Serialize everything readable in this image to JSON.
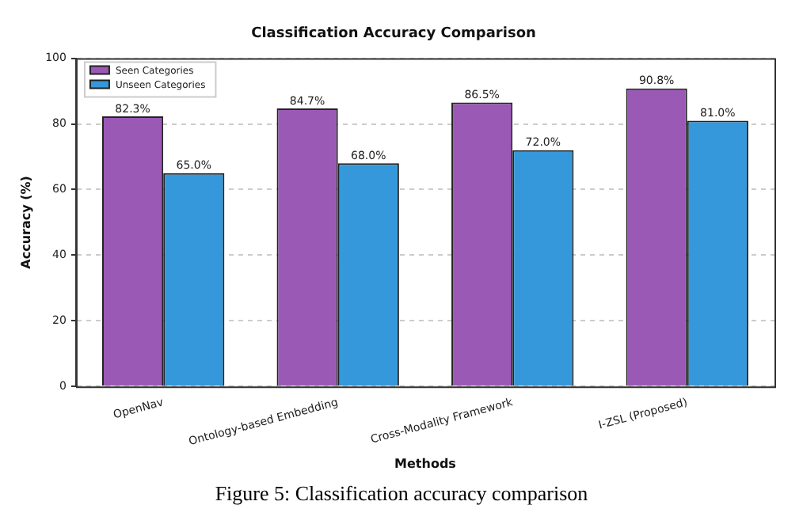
{
  "chart_data": {
    "type": "bar",
    "title": "Classification Accuracy Comparison",
    "xlabel": "Methods",
    "ylabel": "Accuracy (%)",
    "categories": [
      "OpenNav",
      "Ontology-based Embedding",
      "Cross-Modality Framework",
      "I-ZSL (Proposed)"
    ],
    "series": [
      {
        "name": "Seen Categories",
        "color": "#9b59b6",
        "values": [
          82.3,
          84.7,
          86.5,
          90.8
        ],
        "value_labels": [
          "82.3%",
          "84.7%",
          "86.5%",
          "90.8%"
        ]
      },
      {
        "name": "Unseen Categories",
        "color": "#3498db",
        "values": [
          65.0,
          68.0,
          72.0,
          81.0
        ],
        "value_labels": [
          "65.0%",
          "68.0%",
          "72.0%",
          "81.0%"
        ]
      }
    ],
    "ylim": [
      0,
      100
    ],
    "yticks": [
      0,
      20,
      40,
      60,
      80,
      100
    ],
    "grid": "y",
    "legend": "top left",
    "annotations": [
      "Figure 5: Classification accuracy comparison"
    ]
  }
}
